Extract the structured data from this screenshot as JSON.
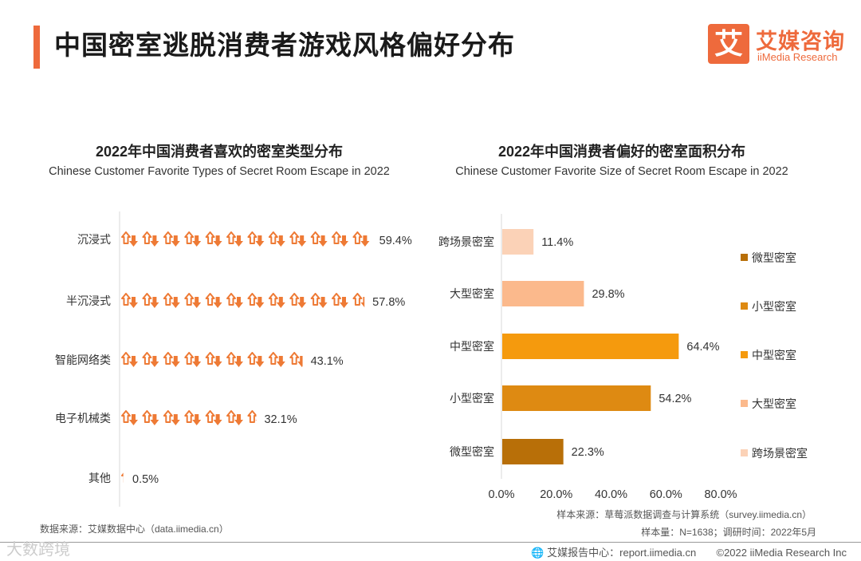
{
  "header": {
    "title": "中国密室逃脱消费者游戏风格偏好分布",
    "logo_mark": "艾",
    "logo_cn": "艾媒咨询",
    "logo_en": "iiMedia Research"
  },
  "chart_data": [
    {
      "type": "bar",
      "orientation": "horizontal",
      "style": "pictogram",
      "title": "2022年中国消费者喜欢的密室类型分布",
      "subtitle": "Chinese Customer Favorite Types of Secret Room Escape in 2022",
      "categories": [
        "沉浸式",
        "半沉浸式",
        "智能网络类",
        "电子机械类",
        "其他"
      ],
      "values": [
        59.4,
        57.8,
        43.1,
        32.1,
        0.5
      ],
      "labels": [
        "59.4%",
        "57.8%",
        "43.1%",
        "32.1%",
        "0.5%"
      ],
      "unit": "%",
      "color": "#ee7a35",
      "xlim": [
        0,
        60
      ]
    },
    {
      "type": "bar",
      "orientation": "horizontal",
      "title": "2022年中国消费者偏好的密室面积分布",
      "subtitle": "Chinese Customer Favorite Size of Secret Room Escape in 2022",
      "categories": [
        "跨场景密室",
        "大型密室",
        "中型密室",
        "小型密室",
        "微型密室"
      ],
      "values": [
        11.4,
        29.8,
        64.4,
        54.2,
        22.3
      ],
      "labels": [
        "11.4%",
        "29.8%",
        "64.4%",
        "54.2%",
        "22.3%"
      ],
      "colors": [
        "#fbd2b7",
        "#fbb98c",
        "#f59a0d",
        "#de8a12",
        "#b86f08"
      ],
      "xlim": [
        0,
        80
      ],
      "ticks": [
        0,
        20,
        40,
        60,
        80
      ],
      "tick_labels": [
        "0.0%",
        "20.0%",
        "40.0%",
        "60.0%",
        "80.0%"
      ],
      "legend": {
        "position": "right",
        "items": [
          {
            "label": "微型密室",
            "color": "#b86f08"
          },
          {
            "label": "小型密室",
            "color": "#de8a12"
          },
          {
            "label": "中型密室",
            "color": "#f59a0d"
          },
          {
            "label": "大型密室",
            "color": "#fbb98c"
          },
          {
            "label": "跨场景密室",
            "color": "#fbd2b7"
          }
        ]
      }
    }
  ],
  "footer": {
    "source_left": "数据来源：艾媒数据中心（data.iimedia.cn）",
    "source_right": "样本来源：草莓派数据调查与计算系统（survey.iimedia.cn）",
    "sample_info": "样本量：N=1638；调研时间：2022年5月",
    "report_center": "艾媒报告中心：report.iimedia.cn",
    "copyright": "©2022  iiMedia Research  Inc",
    "watermark": "大数跨境"
  }
}
